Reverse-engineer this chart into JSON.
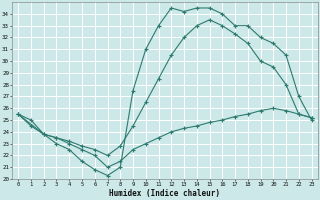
{
  "xlabel": "Humidex (Indice chaleur)",
  "bg_color": "#cce8e8",
  "grid_color": "#ffffff",
  "line_color": "#2d7a6f",
  "xlim": [
    -0.5,
    23.5
  ],
  "ylim": [
    20,
    35
  ],
  "yticks": [
    20,
    21,
    22,
    23,
    24,
    25,
    26,
    27,
    28,
    29,
    30,
    31,
    32,
    33,
    34
  ],
  "xticks": [
    0,
    1,
    2,
    3,
    4,
    5,
    6,
    7,
    8,
    9,
    10,
    11,
    12,
    13,
    14,
    15,
    16,
    17,
    18,
    19,
    20,
    21,
    22,
    23
  ],
  "line1_x": [
    0,
    1,
    2,
    3,
    4,
    5,
    6,
    7,
    8,
    9,
    10,
    11,
    12,
    13,
    14,
    15,
    16,
    17,
    18,
    19,
    20,
    21,
    22,
    23
  ],
  "line1_y": [
    25.5,
    25.0,
    23.8,
    23.0,
    22.5,
    21.5,
    20.8,
    20.3,
    21.0,
    27.5,
    31.0,
    33.0,
    34.5,
    34.2,
    34.5,
    34.5,
    34.0,
    33.0,
    33.0,
    32.0,
    31.5,
    30.5,
    27.0,
    25.0
  ],
  "line2_x": [
    0,
    2,
    3,
    4,
    5,
    6,
    7,
    8,
    9,
    10,
    11,
    12,
    13,
    14,
    15,
    16,
    17,
    18,
    19,
    20,
    21,
    22,
    23
  ],
  "line2_y": [
    25.5,
    23.8,
    23.5,
    23.2,
    22.8,
    22.5,
    22.0,
    22.8,
    24.5,
    26.5,
    28.5,
    30.5,
    32.0,
    33.0,
    33.5,
    33.0,
    32.3,
    31.5,
    30.0,
    29.5,
    28.0,
    25.5,
    25.2
  ],
  "line3_x": [
    0,
    1,
    2,
    3,
    4,
    5,
    6,
    7,
    8,
    9,
    10,
    11,
    12,
    13,
    14,
    15,
    16,
    17,
    18,
    19,
    20,
    21,
    22,
    23
  ],
  "line3_y": [
    25.5,
    24.5,
    23.8,
    23.5,
    23.0,
    22.5,
    22.0,
    21.0,
    21.5,
    22.5,
    23.0,
    23.5,
    24.0,
    24.3,
    24.5,
    24.8,
    25.0,
    25.3,
    25.5,
    25.8,
    26.0,
    25.8,
    25.5,
    25.2
  ]
}
